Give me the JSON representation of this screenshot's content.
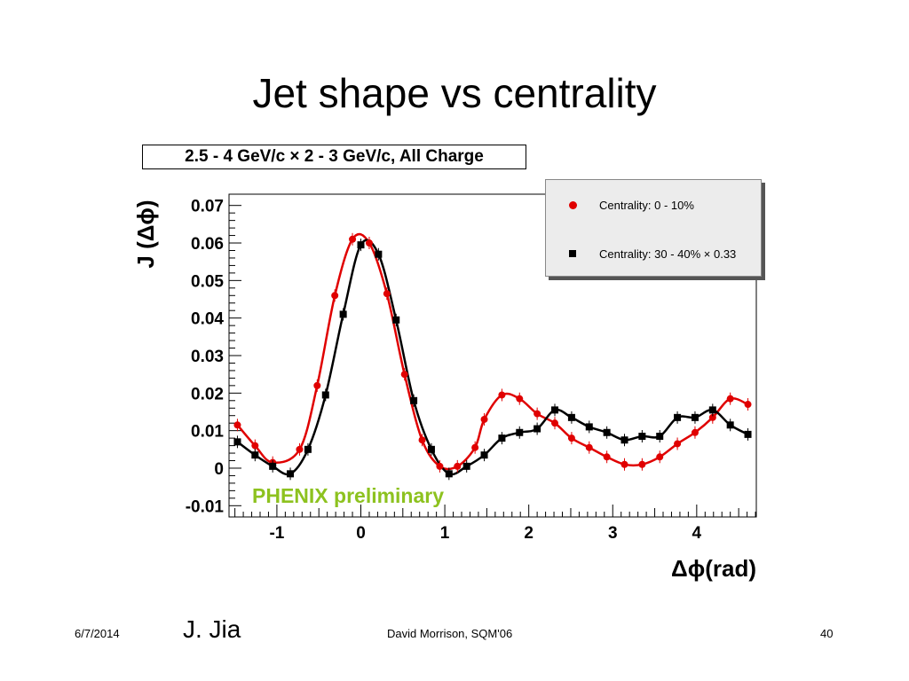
{
  "slide": {
    "title": "Jet shape vs centrality",
    "footer_date": "6/7/2014",
    "footer_author": "J. Jia",
    "footer_credit": "David Morrison, SQM'06",
    "page_number": "40"
  },
  "chart_data": {
    "type": "scatter",
    "title": "2.5 - 4 GeV/c × 2 - 3 GeV/c,  All Charge",
    "xlabel": "Δϕ(rad)",
    "ylabel": "J (Δϕ)",
    "xlim": [
      -1.57,
      4.71
    ],
    "ylim": [
      -0.013,
      0.073
    ],
    "xticks": [
      -1,
      0,
      1,
      2,
      3,
      4
    ],
    "xtick_labels": [
      "-1",
      "0",
      "1",
      "2",
      "3",
      "4"
    ],
    "yticks": [
      -0.01,
      0,
      0.01,
      0.02,
      0.03,
      0.04,
      0.05,
      0.06,
      0.07
    ],
    "ytick_labels": [
      "-0.01",
      "0",
      "0.01",
      "0.02",
      "0.03",
      "0.04",
      "0.05",
      "0.06",
      "0.07"
    ],
    "grid": false,
    "legend_position": "top-right",
    "annotation": "PHENIX preliminary",
    "colors": {
      "series_0_10": "#e00000",
      "series_30_40": "#000000",
      "annotation": "#8dc21f"
    },
    "series": [
      {
        "name": "Centrality:  0 - 10%",
        "marker": "circle",
        "x": [
          -1.47,
          -1.26,
          -1.05,
          -0.73,
          -0.52,
          -0.31,
          -0.1,
          0.1,
          0.31,
          0.52,
          0.73,
          0.94,
          1.15,
          1.36,
          1.47,
          1.68,
          1.89,
          2.1,
          2.31,
          2.51,
          2.72,
          2.93,
          3.14,
          3.35,
          3.56,
          3.77,
          3.98,
          4.19,
          4.4,
          4.61
        ],
        "y": [
          0.0115,
          0.006,
          0.0015,
          0.005,
          0.022,
          0.046,
          0.061,
          0.06,
          0.0465,
          0.025,
          0.0075,
          0.0005,
          0.0005,
          0.0055,
          0.013,
          0.0195,
          0.0185,
          0.0145,
          0.012,
          0.008,
          0.0055,
          0.003,
          0.001,
          0.001,
          0.003,
          0.0065,
          0.0095,
          0.0135,
          0.0185,
          0.017
        ]
      },
      {
        "name": "Centrality: 30 - 40% × 0.33",
        "marker": "square",
        "x": [
          -1.47,
          -1.26,
          -1.05,
          -0.84,
          -0.63,
          -0.42,
          -0.21,
          0.0,
          0.21,
          0.42,
          0.63,
          0.84,
          1.05,
          1.26,
          1.47,
          1.68,
          1.89,
          2.1,
          2.31,
          2.51,
          2.72,
          2.93,
          3.14,
          3.35,
          3.56,
          3.77,
          3.98,
          4.19,
          4.4,
          4.61
        ],
        "y": [
          0.007,
          0.0035,
          0.0005,
          -0.0015,
          0.005,
          0.0195,
          0.041,
          0.0595,
          0.057,
          0.0395,
          0.018,
          0.005,
          -0.0015,
          0.0005,
          0.0035,
          0.008,
          0.0095,
          0.0105,
          0.0155,
          0.0135,
          0.011,
          0.0095,
          0.0075,
          0.0085,
          0.0085,
          0.0135,
          0.0135,
          0.0155,
          0.0115,
          0.009
        ]
      }
    ]
  }
}
